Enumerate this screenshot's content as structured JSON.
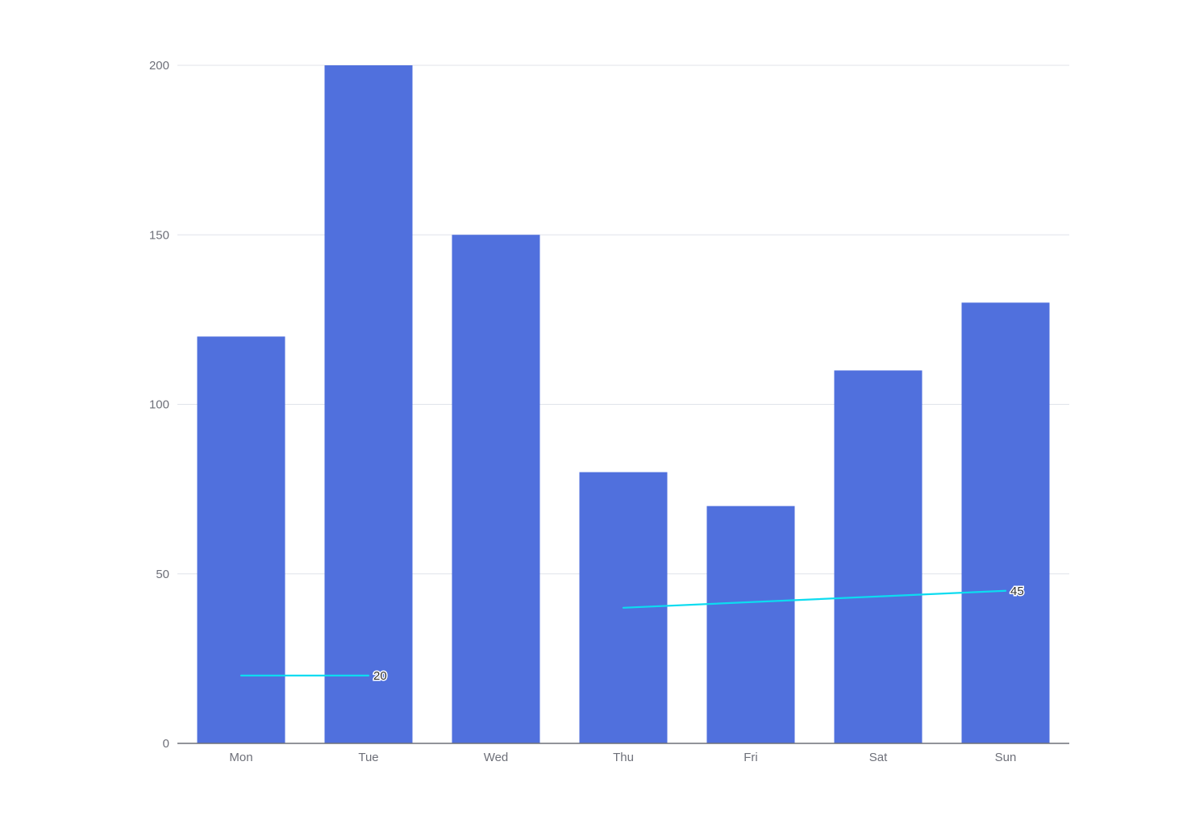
{
  "chart_data": {
    "type": "bar",
    "categories": [
      "Mon",
      "Tue",
      "Wed",
      "Thu",
      "Fri",
      "Sat",
      "Sun"
    ],
    "series": [
      {
        "type": "bar",
        "values": [
          120,
          200,
          150,
          80,
          70,
          110,
          130
        ],
        "color": "#5070dd"
      },
      {
        "type": "line",
        "segments": [
          {
            "from": "Mon",
            "to": "Tue",
            "values": [
              20,
              20
            ],
            "end_label": "20"
          },
          {
            "from": "Thu",
            "to": "Sun",
            "values": [
              40,
              45
            ],
            "end_label": "45"
          }
        ],
        "color": "#0ddcf0"
      }
    ],
    "y_ticks": [
      0,
      50,
      100,
      150,
      200
    ],
    "ylim": [
      0,
      200
    ],
    "grid": true,
    "title": "",
    "xlabel": "",
    "ylabel": ""
  }
}
